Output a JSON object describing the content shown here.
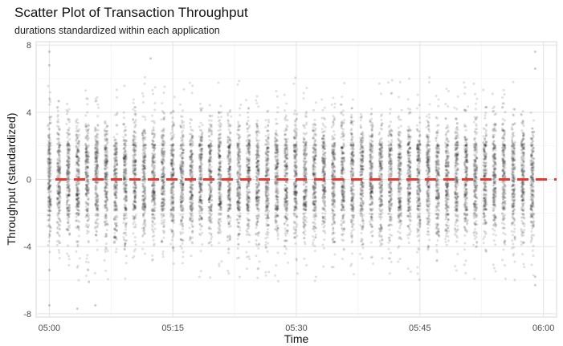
{
  "chart_data": {
    "type": "scatter",
    "title": "Scatter Plot of Transaction Throughput",
    "subtitle": "durations standardized within each application",
    "xlabel": "Time",
    "ylabel": "Throughput (standardized)",
    "x_ticks": [
      "05:00",
      "05:15",
      "05:30",
      "05:45",
      "06:00"
    ],
    "x_tick_minutes": [
      0,
      15,
      30,
      45,
      60
    ],
    "xlim_minutes": [
      -1.6,
      61.6
    ],
    "y_ticks": [
      -8,
      -4,
      0,
      4,
      8
    ],
    "ylim": [
      -8.2,
      8.2
    ],
    "grid": true,
    "reference_line": {
      "y": 0,
      "style": "dashed",
      "color": "#e8372c"
    },
    "point_color": "#000000",
    "point_opacity": 0.12,
    "clusters": {
      "start_minute": 0,
      "end_minute": 59,
      "spacing_minutes": 1.15,
      "count": 52,
      "core_min": -1.9,
      "core_max": 2.1,
      "outlier_min": -7.5,
      "outlier_max": 7.6
    }
  }
}
